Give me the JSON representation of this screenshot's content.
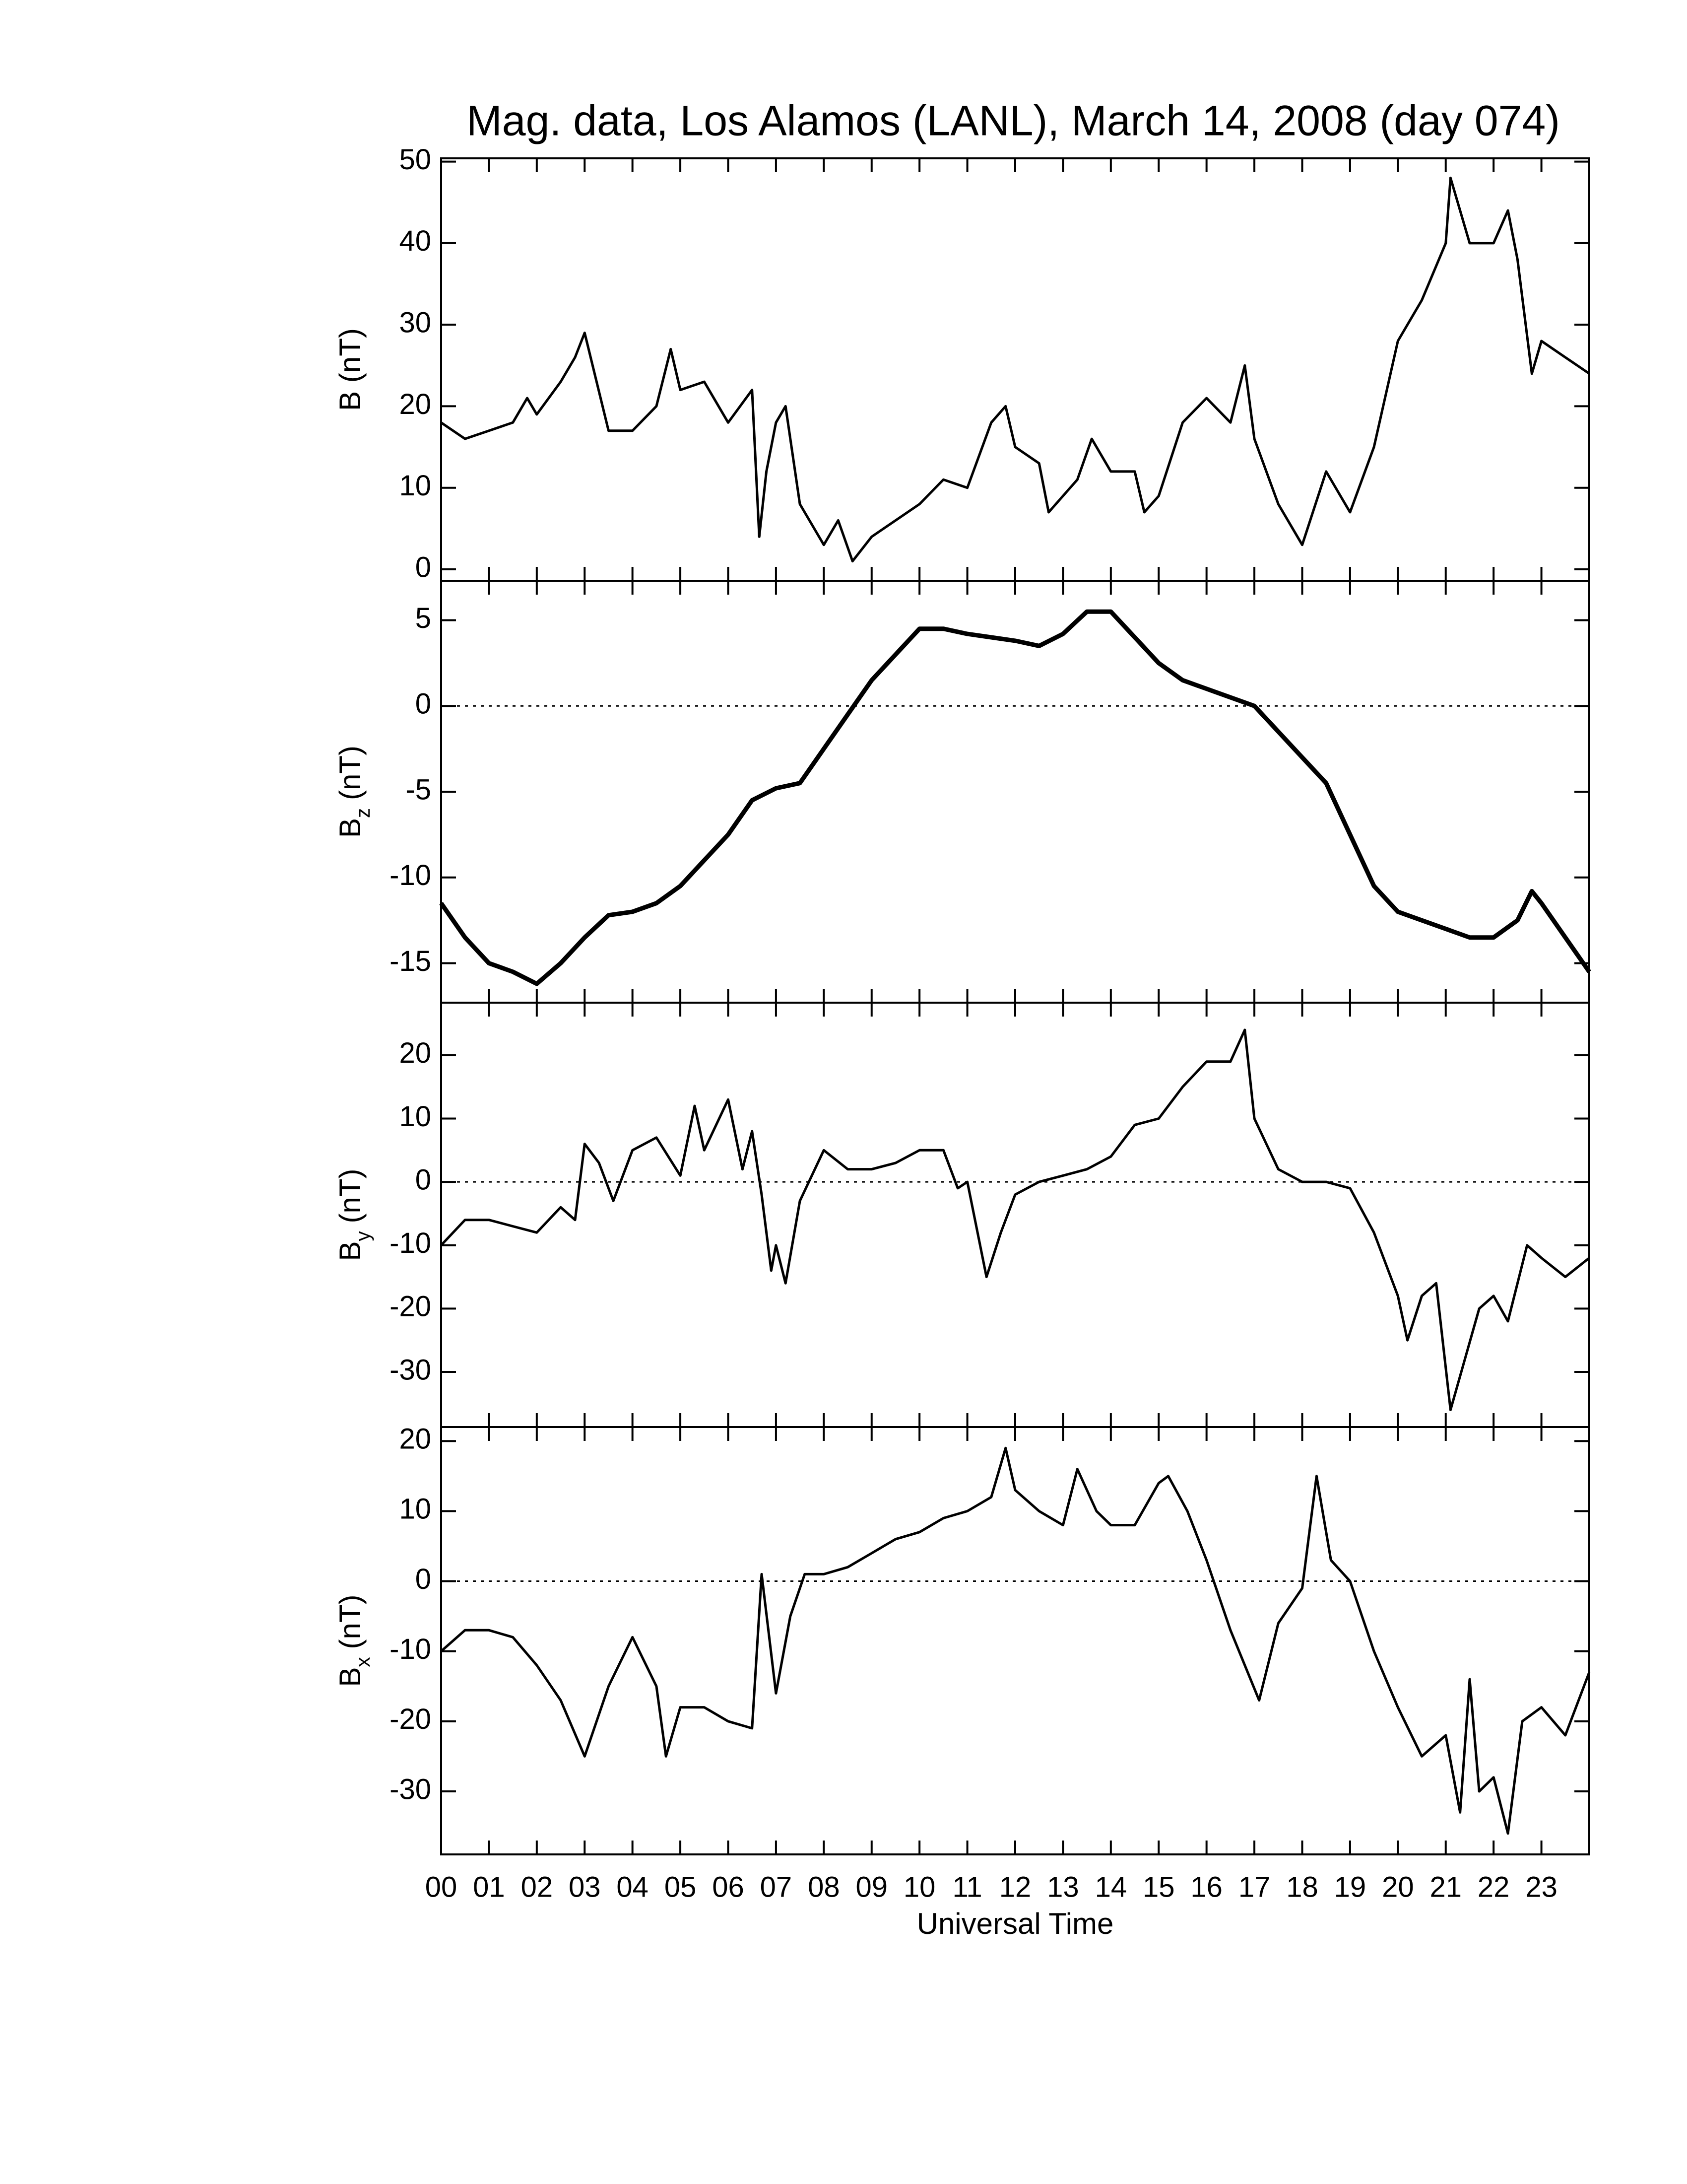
{
  "chart_data": [
    {
      "type": "line",
      "title": "Mag. data, Los Alamos (LANL), March 14, 2008 (day 074)",
      "ylabel": "B (nT)",
      "color": "#000000",
      "zero_line": false,
      "xlim": [
        0,
        24
      ],
      "ylim": [
        -1.4,
        50.4
      ],
      "yticks": [
        0,
        10,
        20,
        30,
        40,
        50
      ],
      "xticks": [
        {
          "value": 0,
          "label": "00"
        },
        {
          "value": 1,
          "label": "01"
        },
        {
          "value": 2,
          "label": "02"
        },
        {
          "value": 3,
          "label": "03"
        },
        {
          "value": 4,
          "label": "04"
        },
        {
          "value": 5,
          "label": "05"
        },
        {
          "value": 6,
          "label": "06"
        },
        {
          "value": 7,
          "label": "07"
        },
        {
          "value": 8,
          "label": "08"
        },
        {
          "value": 9,
          "label": "09"
        },
        {
          "value": 10,
          "label": "10"
        },
        {
          "value": 11,
          "label": "11"
        },
        {
          "value": 12,
          "label": "12"
        },
        {
          "value": 13,
          "label": "13"
        },
        {
          "value": 14,
          "label": "14"
        },
        {
          "value": 15,
          "label": "15"
        },
        {
          "value": 16,
          "label": "16"
        },
        {
          "value": 17,
          "label": "17"
        },
        {
          "value": 18,
          "label": "18"
        },
        {
          "value": 19,
          "label": "19"
        },
        {
          "value": 20,
          "label": "20"
        },
        {
          "value": 21,
          "label": "21"
        },
        {
          "value": 22,
          "label": "22"
        },
        {
          "value": 23,
          "label": "23"
        }
      ],
      "x": [
        0,
        0.5,
        1,
        1.5,
        1.8,
        2,
        2.5,
        2.8,
        3,
        3.5,
        4,
        4.5,
        4.8,
        5,
        5.5,
        6,
        6.5,
        6.65,
        6.8,
        7,
        7.2,
        7.5,
        8,
        8.3,
        8.6,
        9,
        9.5,
        10,
        10.5,
        11,
        11.5,
        11.8,
        12,
        12.5,
        12.7,
        13,
        13.3,
        13.6,
        14,
        14.5,
        14.7,
        15,
        15.5,
        16,
        16.5,
        16.8,
        17,
        17.5,
        18,
        18.5,
        19,
        19.5,
        20,
        20.5,
        21,
        21.1,
        21.5,
        22,
        22.3,
        22.5,
        22.8,
        23,
        23.5,
        24
      ],
      "values": [
        18,
        16,
        17,
        18,
        21,
        19,
        23,
        26,
        29,
        17,
        17,
        20,
        27,
        22,
        23,
        18,
        22,
        4,
        12,
        18,
        20,
        8,
        3,
        6,
        1,
        4,
        6,
        8,
        11,
        10,
        18,
        20,
        15,
        13,
        7,
        9,
        11,
        16,
        12,
        12,
        7,
        9,
        18,
        21,
        18,
        25,
        16,
        8,
        3,
        12,
        7,
        15,
        28,
        33,
        40,
        48,
        40,
        40,
        44,
        38,
        24,
        28,
        26,
        24
      ]
    },
    {
      "type": "line",
      "ylabel": {
        "base": "B",
        "sub": "z",
        "unit": "(nT)"
      },
      "color": "#000000",
      "zero_line": true,
      "xlim": [
        0,
        24
      ],
      "ylim": [
        -17.3,
        7.3
      ],
      "yticks": [
        -15,
        -10,
        -5,
        0,
        5
      ],
      "xticks": [
        {
          "value": 0,
          "label": "00"
        },
        {
          "value": 1,
          "label": "01"
        },
        {
          "value": 2,
          "label": "02"
        },
        {
          "value": 3,
          "label": "03"
        },
        {
          "value": 4,
          "label": "04"
        },
        {
          "value": 5,
          "label": "05"
        },
        {
          "value": 6,
          "label": "06"
        },
        {
          "value": 7,
          "label": "07"
        },
        {
          "value": 8,
          "label": "08"
        },
        {
          "value": 9,
          "label": "09"
        },
        {
          "value": 10,
          "label": "10"
        },
        {
          "value": 11,
          "label": "11"
        },
        {
          "value": 12,
          "label": "12"
        },
        {
          "value": 13,
          "label": "13"
        },
        {
          "value": 14,
          "label": "14"
        },
        {
          "value": 15,
          "label": "15"
        },
        {
          "value": 16,
          "label": "16"
        },
        {
          "value": 17,
          "label": "17"
        },
        {
          "value": 18,
          "label": "18"
        },
        {
          "value": 19,
          "label": "19"
        },
        {
          "value": 20,
          "label": "20"
        },
        {
          "value": 21,
          "label": "21"
        },
        {
          "value": 22,
          "label": "22"
        },
        {
          "value": 23,
          "label": "23"
        }
      ],
      "x": [
        0,
        0.5,
        1,
        1.5,
        2,
        2.5,
        3,
        3.5,
        4,
        4.5,
        5,
        5.5,
        6,
        6.5,
        7,
        7.5,
        8,
        8.5,
        9,
        9.5,
        10,
        10.5,
        11,
        11.5,
        12,
        12.5,
        13,
        13.5,
        14,
        14.5,
        15,
        15.5,
        16,
        16.5,
        17,
        17.5,
        18,
        18.5,
        19,
        19.5,
        20,
        20.5,
        21,
        21.5,
        22,
        22.5,
        22.8,
        23,
        23.5,
        24
      ],
      "values": [
        -11.5,
        -13.5,
        -15,
        -15.5,
        -16.2,
        -15,
        -13.5,
        -12.2,
        -12,
        -11.5,
        -10.5,
        -9,
        -7.5,
        -5.5,
        -4.8,
        -4.5,
        -2.5,
        -0.5,
        1.5,
        3,
        4.5,
        4.5,
        4.2,
        4,
        3.8,
        3.5,
        4.2,
        5.5,
        5.5,
        4,
        2.5,
        1.5,
        1,
        0.5,
        0,
        -1.5,
        -3,
        -4.5,
        -7.5,
        -10.5,
        -12,
        -12.5,
        -13,
        -13.5,
        -13.5,
        -12.5,
        -10.8,
        -11.5,
        -13.5,
        -15.5
      ]
    },
    {
      "type": "line",
      "ylabel": {
        "base": "B",
        "sub": "y",
        "unit": "(nT)"
      },
      "color": "#000000",
      "zero_line": true,
      "xlim": [
        0,
        24
      ],
      "ylim": [
        -38.7,
        28.3
      ],
      "yticks": [
        -30,
        -20,
        -10,
        0,
        10,
        20
      ],
      "xticks": [
        {
          "value": 0,
          "label": "00"
        },
        {
          "value": 1,
          "label": "01"
        },
        {
          "value": 2,
          "label": "02"
        },
        {
          "value": 3,
          "label": "03"
        },
        {
          "value": 4,
          "label": "04"
        },
        {
          "value": 5,
          "label": "05"
        },
        {
          "value": 6,
          "label": "06"
        },
        {
          "value": 7,
          "label": "07"
        },
        {
          "value": 8,
          "label": "08"
        },
        {
          "value": 9,
          "label": "09"
        },
        {
          "value": 10,
          "label": "10"
        },
        {
          "value": 11,
          "label": "11"
        },
        {
          "value": 12,
          "label": "12"
        },
        {
          "value": 13,
          "label": "13"
        },
        {
          "value": 14,
          "label": "14"
        },
        {
          "value": 15,
          "label": "15"
        },
        {
          "value": 16,
          "label": "16"
        },
        {
          "value": 17,
          "label": "17"
        },
        {
          "value": 18,
          "label": "18"
        },
        {
          "value": 19,
          "label": "19"
        },
        {
          "value": 20,
          "label": "20"
        },
        {
          "value": 21,
          "label": "21"
        },
        {
          "value": 22,
          "label": "22"
        },
        {
          "value": 23,
          "label": "23"
        }
      ],
      "x": [
        0,
        0.5,
        1,
        1.5,
        2,
        2.5,
        2.8,
        3,
        3.3,
        3.6,
        4,
        4.5,
        5,
        5.3,
        5.5,
        6,
        6.3,
        6.5,
        6.7,
        6.9,
        7.0,
        7.2,
        7.5,
        8,
        8.5,
        9,
        9.5,
        10,
        10.5,
        10.8,
        11,
        11.4,
        11.7,
        12,
        12.5,
        13,
        13.5,
        14,
        14.5,
        15,
        15.5,
        16,
        16.5,
        16.8,
        17,
        17.5,
        18,
        18.5,
        19,
        19.5,
        20,
        20.2,
        20.5,
        20.8,
        21.1,
        21.4,
        21.7,
        22,
        22.3,
        22.7,
        23,
        23.5,
        24
      ],
      "values": [
        -10,
        -6,
        -6,
        -7,
        -8,
        -4,
        -6,
        6,
        3,
        -3,
        5,
        7,
        1,
        12,
        5,
        13,
        2,
        8,
        -2,
        -14,
        -10,
        -16,
        -3,
        5,
        2,
        2,
        3,
        5,
        5,
        -1,
        0,
        -15,
        -8,
        -2,
        0,
        1,
        2,
        4,
        9,
        10,
        15,
        19,
        19,
        24,
        10,
        2,
        0,
        0,
        -1,
        -8,
        -18,
        -25,
        -18,
        -16,
        -36,
        -28,
        -20,
        -18,
        -22,
        -10,
        -12,
        -15,
        -12
      ]
    },
    {
      "type": "line",
      "ylabel": {
        "base": "B",
        "sub": "x",
        "unit": "(nT)"
      },
      "xlabel": "Universal Time",
      "color": "#000000",
      "zero_line": true,
      "xlim": [
        0,
        24
      ],
      "ylim": [
        -39,
        22
      ],
      "yticks": [
        -30,
        -20,
        -10,
        0,
        10,
        20
      ],
      "xticks": [
        {
          "value": 0,
          "label": "00"
        },
        {
          "value": 1,
          "label": "01"
        },
        {
          "value": 2,
          "label": "02"
        },
        {
          "value": 3,
          "label": "03"
        },
        {
          "value": 4,
          "label": "04"
        },
        {
          "value": 5,
          "label": "05"
        },
        {
          "value": 6,
          "label": "06"
        },
        {
          "value": 7,
          "label": "07"
        },
        {
          "value": 8,
          "label": "08"
        },
        {
          "value": 9,
          "label": "09"
        },
        {
          "value": 10,
          "label": "10"
        },
        {
          "value": 11,
          "label": "11"
        },
        {
          "value": 12,
          "label": "12"
        },
        {
          "value": 13,
          "label": "13"
        },
        {
          "value": 14,
          "label": "14"
        },
        {
          "value": 15,
          "label": "15"
        },
        {
          "value": 16,
          "label": "16"
        },
        {
          "value": 17,
          "label": "17"
        },
        {
          "value": 18,
          "label": "18"
        },
        {
          "value": 19,
          "label": "19"
        },
        {
          "value": 20,
          "label": "20"
        },
        {
          "value": 21,
          "label": "21"
        },
        {
          "value": 22,
          "label": "22"
        },
        {
          "value": 23,
          "label": "23"
        }
      ],
      "x": [
        0,
        0.5,
        1,
        1.5,
        2,
        2.5,
        3,
        3.5,
        4,
        4.5,
        4.7,
        5,
        5.5,
        6,
        6.5,
        6.7,
        7,
        7.3,
        7.6,
        8,
        8.5,
        9,
        9.5,
        10,
        10.5,
        11,
        11.5,
        11.8,
        12,
        12.5,
        13,
        13.3,
        13.7,
        14,
        14.5,
        15,
        15.2,
        15.6,
        16,
        16.5,
        17.1,
        17.5,
        18,
        18.3,
        18.6,
        19,
        19.5,
        20,
        20.5,
        21,
        21.3,
        21.5,
        21.7,
        22,
        22.3,
        22.6,
        23,
        23.5,
        24
      ],
      "values": [
        -10,
        -7,
        -7,
        -8,
        -12,
        -17,
        -25,
        -15,
        -8,
        -15,
        -25,
        -18,
        -18,
        -20,
        -21,
        1,
        -16,
        -5,
        1,
        1,
        2,
        4,
        6,
        7,
        9,
        10,
        12,
        19,
        13,
        10,
        8,
        16,
        10,
        8,
        8,
        14,
        15,
        10,
        3,
        -7,
        -17,
        -6,
        -1,
        15,
        3,
        0,
        -10,
        -18,
        -25,
        -22,
        -33,
        -14,
        -30,
        -28,
        -36,
        -20,
        -18,
        -22,
        -13
      ]
    }
  ]
}
